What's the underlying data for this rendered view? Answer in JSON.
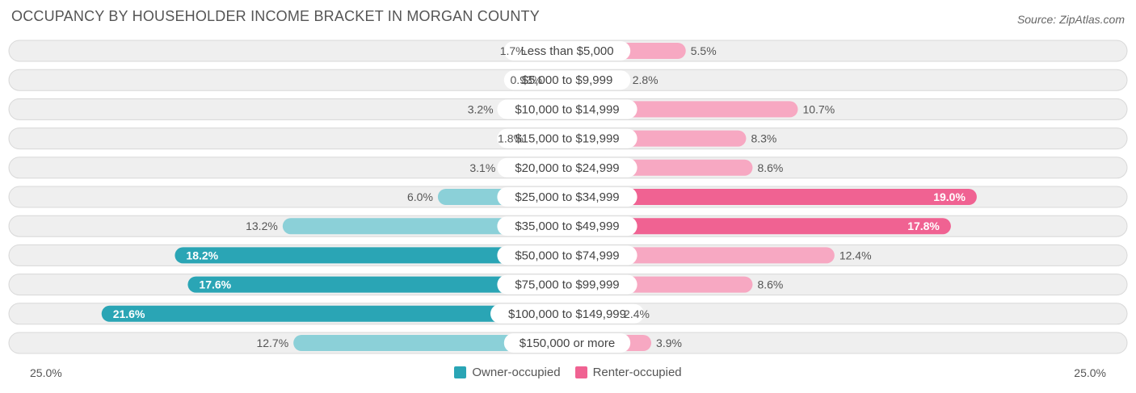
{
  "header": {
    "title": "OCCUPANCY BY HOUSEHOLDER INCOME BRACKET IN MORGAN COUNTY",
    "source": "Source: ZipAtlas.com"
  },
  "axis": {
    "left_label": "25.0%",
    "right_label": "25.0%"
  },
  "legend": {
    "owner_label": "Owner-occupied",
    "renter_label": "Renter-occupied"
  },
  "colors": {
    "owner_dark": "#2aa5b5",
    "owner_light": "#8bd0d8",
    "renter_dark": "#f06292",
    "renter_light": "#f7a8c2",
    "row_bg": "#efefef",
    "row_border": "#d8d8d8",
    "text": "#555555"
  },
  "chart_data": {
    "type": "bar",
    "orientation": "horizontal-diverging",
    "title": "OCCUPANCY BY HOUSEHOLDER INCOME BRACKET IN MORGAN COUNTY",
    "xlim": [
      -25,
      25
    ],
    "categories": [
      "Less than $5,000",
      "$5,000 to $9,999",
      "$10,000 to $14,999",
      "$15,000 to $19,999",
      "$20,000 to $24,999",
      "$25,000 to $34,999",
      "$35,000 to $49,999",
      "$50,000 to $74,999",
      "$75,000 to $99,999",
      "$100,000 to $149,999",
      "$150,000 or more"
    ],
    "series": [
      {
        "name": "Owner-occupied",
        "values": [
          1.7,
          0.93,
          3.2,
          1.8,
          3.1,
          6.0,
          13.2,
          18.2,
          17.6,
          21.6,
          12.7
        ],
        "labels": [
          "1.7%",
          "0.93%",
          "3.2%",
          "1.8%",
          "3.1%",
          "6.0%",
          "13.2%",
          "18.2%",
          "17.6%",
          "21.6%",
          "12.7%"
        ]
      },
      {
        "name": "Renter-occupied",
        "values": [
          5.5,
          2.8,
          10.7,
          8.3,
          8.6,
          19.0,
          17.8,
          12.4,
          8.6,
          2.4,
          3.9
        ],
        "labels": [
          "5.5%",
          "2.8%",
          "10.7%",
          "8.3%",
          "8.6%",
          "19.0%",
          "17.8%",
          "12.4%",
          "8.6%",
          "2.4%",
          "3.9%"
        ]
      }
    ]
  }
}
